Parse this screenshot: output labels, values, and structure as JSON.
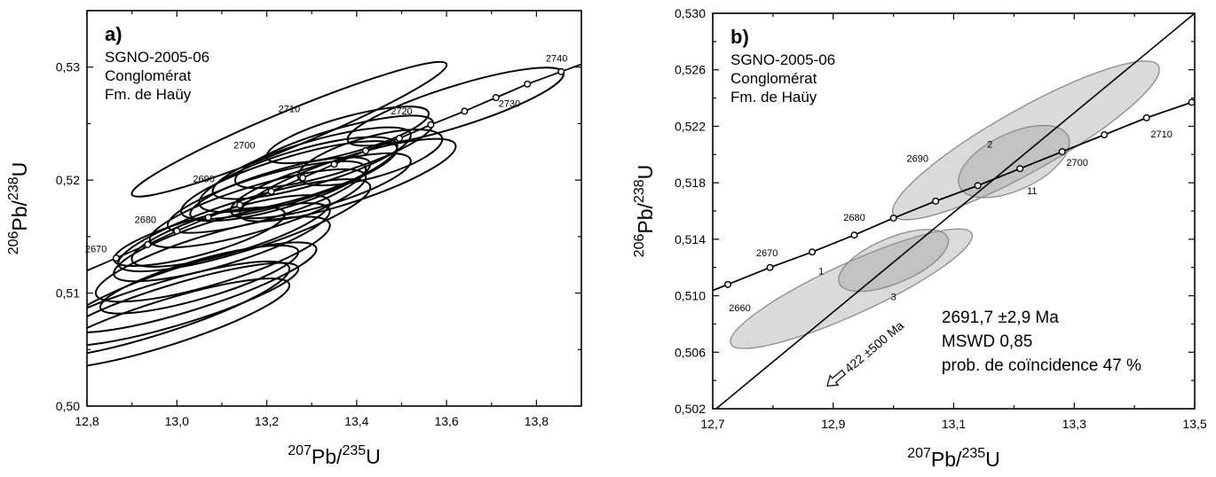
{
  "chart_data": [
    {
      "type": "scatter",
      "panel": "a)",
      "info": [
        "SGNO-2005-06",
        "Conglomérat",
        "Fm. de Haüy"
      ],
      "xlabel": {
        "top": "207",
        "base": "Pb/",
        "top2": "235",
        "base2": "U"
      },
      "ylabel": {
        "top": "206",
        "base": "Pb/",
        "top2": "238",
        "base2": "U"
      },
      "xlim": [
        12.8,
        13.9
      ],
      "ylim": [
        0.5,
        0.535
      ],
      "xticks": [
        12.8,
        13.0,
        13.2,
        13.4,
        13.6,
        13.8
      ],
      "xtick_labels": [
        "12,8",
        "13,0",
        "13,2",
        "13,4",
        "13,6",
        "13,8"
      ],
      "yticks": [
        0.5,
        0.51,
        0.52,
        0.53
      ],
      "ytick_labels": [
        "0,50",
        "0,51",
        "0,52",
        "0,53"
      ],
      "concordia_points": [
        {
          "x": 12.865,
          "y": 0.5131,
          "label": "2670"
        },
        {
          "x": 12.935,
          "y": 0.5143,
          "label": ""
        },
        {
          "x": 13.0,
          "y": 0.5155,
          "label": "2680"
        },
        {
          "x": 13.07,
          "y": 0.5167,
          "label": ""
        },
        {
          "x": 13.14,
          "y": 0.5178,
          "label": ""
        },
        {
          "x": 13.21,
          "y": 0.519,
          "label": "2690"
        },
        {
          "x": 13.28,
          "y": 0.5202,
          "label": ""
        },
        {
          "x": 13.35,
          "y": 0.5214,
          "label": "2700"
        },
        {
          "x": 13.42,
          "y": 0.5226,
          "label": ""
        },
        {
          "x": 13.495,
          "y": 0.5237,
          "label": "2710"
        },
        {
          "x": 13.565,
          "y": 0.5249,
          "label": "2720"
        },
        {
          "x": 13.64,
          "y": 0.5261,
          "label": ""
        },
        {
          "x": 13.71,
          "y": 0.5273,
          "label": "2730"
        },
        {
          "x": 13.78,
          "y": 0.5285,
          "label": ""
        },
        {
          "x": 13.855,
          "y": 0.5296,
          "label": "2740"
        }
      ],
      "age_label_positions": [
        {
          "label": "2670",
          "x": 12.82,
          "y": 0.5136
        },
        {
          "label": "2680",
          "x": 12.93,
          "y": 0.5162
        },
        {
          "label": "2690",
          "x": 13.06,
          "y": 0.5198
        },
        {
          "label": "2700",
          "x": 13.15,
          "y": 0.5228
        },
        {
          "label": "2710",
          "x": 13.25,
          "y": 0.526
        },
        {
          "label": "2720",
          "x": 13.5,
          "y": 0.5258
        },
        {
          "label": "2730",
          "x": 13.74,
          "y": 0.5265
        },
        {
          "label": "2740",
          "x": 13.845,
          "y": 0.5305
        }
      ],
      "ellipses": [
        {
          "cx": 12.95,
          "cy": 0.5085,
          "rx": 0.3,
          "ry": 0.0022,
          "angle": 0.0125
        },
        {
          "cx": 12.97,
          "cy": 0.5073,
          "rx": 0.28,
          "ry": 0.002,
          "angle": 0.0125
        },
        {
          "cx": 13.0,
          "cy": 0.509,
          "rx": 0.27,
          "ry": 0.0018,
          "angle": 0.012
        },
        {
          "cx": 13.03,
          "cy": 0.5105,
          "rx": 0.28,
          "ry": 0.002,
          "angle": 0.0125
        },
        {
          "cx": 13.05,
          "cy": 0.5112,
          "rx": 0.22,
          "ry": 0.0017,
          "angle": 0.0115
        },
        {
          "cx": 13.08,
          "cy": 0.513,
          "rx": 0.26,
          "ry": 0.0022,
          "angle": 0.012
        },
        {
          "cx": 13.1,
          "cy": 0.5145,
          "rx": 0.24,
          "ry": 0.002,
          "angle": 0.012
        },
        {
          "cx": 13.12,
          "cy": 0.5155,
          "rx": 0.22,
          "ry": 0.0019,
          "angle": 0.0118
        },
        {
          "cx": 13.15,
          "cy": 0.516,
          "rx": 0.28,
          "ry": 0.0022,
          "angle": 0.0125
        },
        {
          "cx": 13.18,
          "cy": 0.5175,
          "rx": 0.24,
          "ry": 0.002,
          "angle": 0.012
        },
        {
          "cx": 13.2,
          "cy": 0.5185,
          "rx": 0.22,
          "ry": 0.0019,
          "angle": 0.0118
        },
        {
          "cx": 13.23,
          "cy": 0.5192,
          "rx": 0.2,
          "ry": 0.0017,
          "angle": 0.0115
        },
        {
          "cx": 13.25,
          "cy": 0.52,
          "rx": 0.24,
          "ry": 0.002,
          "angle": 0.012
        },
        {
          "cx": 13.27,
          "cy": 0.5205,
          "rx": 0.22,
          "ry": 0.0021,
          "angle": 0.012
        },
        {
          "cx": 13.3,
          "cy": 0.5215,
          "rx": 0.22,
          "ry": 0.0019,
          "angle": 0.0118
        },
        {
          "cx": 13.32,
          "cy": 0.5195,
          "rx": 0.2,
          "ry": 0.0018,
          "angle": 0.0115
        },
        {
          "cx": 13.35,
          "cy": 0.5225,
          "rx": 0.22,
          "ry": 0.0019,
          "angle": 0.012
        },
        {
          "cx": 13.38,
          "cy": 0.524,
          "rx": 0.18,
          "ry": 0.0016,
          "angle": 0.011
        },
        {
          "cx": 13.43,
          "cy": 0.522,
          "rx": 0.16,
          "ry": 0.0018,
          "angle": 0.011
        },
        {
          "cx": 13.25,
          "cy": 0.5245,
          "rx": 0.35,
          "ry": 0.0016,
          "angle": 0.0165
        },
        {
          "cx": 13.38,
          "cy": 0.52,
          "rx": 0.24,
          "ry": 0.002,
          "angle": 0.013
        },
        {
          "cx": 13.05,
          "cy": 0.515,
          "rx": 0.19,
          "ry": 0.0016,
          "angle": 0.011
        },
        {
          "cx": 13.62,
          "cy": 0.5265,
          "rx": 0.24,
          "ry": 0.0018,
          "angle": 0.0125
        }
      ]
    },
    {
      "type": "scatter",
      "panel": "b)",
      "info": [
        "SGNO-2005-06",
        "Conglomérat",
        "Fm. de Haüy"
      ],
      "xlabel": {
        "top": "207",
        "base": "Pb/",
        "top2": "235",
        "base2": "U"
      },
      "ylabel": {
        "top": "206",
        "base": "Pb/",
        "top2": "238",
        "base2": "U"
      },
      "xlim": [
        12.7,
        13.5
      ],
      "ylim": [
        0.502,
        0.53
      ],
      "xticks": [
        12.7,
        12.9,
        13.1,
        13.3,
        13.5
      ],
      "xtick_labels": [
        "12,7",
        "12,9",
        "13,1",
        "13,3",
        "13,5"
      ],
      "yticks": [
        0.502,
        0.506,
        0.51,
        0.514,
        0.518,
        0.522,
        0.526,
        0.53
      ],
      "ytick_labels": [
        "0,502",
        "0,506",
        "0,510",
        "0,514",
        "0,518",
        "0,522",
        "0,526",
        "0,530"
      ],
      "concordia_points": [
        {
          "x": 12.725,
          "y": 0.5108,
          "label": "2660"
        },
        {
          "x": 12.795,
          "y": 0.512,
          "label": "2670"
        },
        {
          "x": 12.865,
          "y": 0.5131,
          "label": ""
        },
        {
          "x": 12.935,
          "y": 0.5143,
          "label": "2680"
        },
        {
          "x": 13.0,
          "y": 0.5155,
          "label": ""
        },
        {
          "x": 13.07,
          "y": 0.5167,
          "label": "2690"
        },
        {
          "x": 13.14,
          "y": 0.5178,
          "label": ""
        },
        {
          "x": 13.21,
          "y": 0.519,
          "label": ""
        },
        {
          "x": 13.28,
          "y": 0.5202,
          "label": "2700"
        },
        {
          "x": 13.35,
          "y": 0.5214,
          "label": ""
        },
        {
          "x": 13.42,
          "y": 0.5226,
          "label": "2710"
        },
        {
          "x": 13.495,
          "y": 0.5237,
          "label": ""
        }
      ],
      "age_label_positions": [
        {
          "label": "2660",
          "x": 12.745,
          "y": 0.5089
        },
        {
          "label": "2670",
          "x": 12.79,
          "y": 0.5128
        },
        {
          "label": "2680",
          "x": 12.935,
          "y": 0.5153
        },
        {
          "label": "2690",
          "x": 13.04,
          "y": 0.5195
        },
        {
          "label": "2700",
          "x": 13.305,
          "y": 0.5192
        },
        {
          "label": "2710",
          "x": 13.445,
          "y": 0.5212
        }
      ],
      "ellipses": [
        {
          "cx": 12.93,
          "cy": 0.5105,
          "rx": 0.2,
          "ry": 0.0018,
          "angle": 0.0195,
          "label": "1",
          "label_x": 12.88,
          "label_y": 0.5115
        },
        {
          "cx": 13.0,
          "cy": 0.5125,
          "rx": 0.09,
          "ry": 0.0016,
          "angle": 0.018,
          "label": "3",
          "label_x": 13.0,
          "label_y": 0.5097
        },
        {
          "cx": 13.22,
          "cy": 0.521,
          "rx": 0.22,
          "ry": 0.0022,
          "angle": 0.024,
          "label": "2",
          "label_x": 13.16,
          "label_y": 0.5205
        },
        {
          "cx": 13.2,
          "cy": 0.5195,
          "rx": 0.09,
          "ry": 0.002,
          "angle": 0.02,
          "label": "11",
          "label_x": 13.23,
          "label_y": 0.5172
        }
      ],
      "discordia": {
        "x1": 12.7,
        "y1": 0.5018,
        "x2": 13.5,
        "y2": 0.53
      },
      "arrow_label": "422 ±500 Ma",
      "results": [
        "2691,7 ±2,9 Ma",
        "MSWD 0,85",
        "prob. de coïncidence 47 %"
      ]
    }
  ]
}
